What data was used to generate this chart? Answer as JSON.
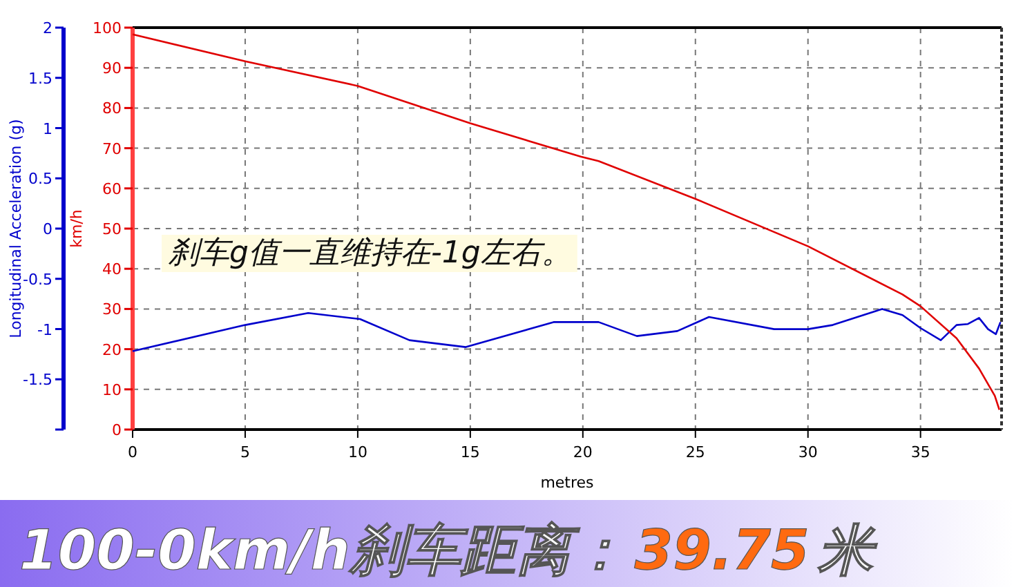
{
  "chart_data": {
    "type": "line",
    "xlabel": "metres",
    "ylabel": "Longitudinal Acceleration (g)",
    "y2label": "km/h",
    "xlim": [
      0,
      38.6
    ],
    "xticks": [
      0,
      5,
      10,
      15,
      20,
      25,
      30,
      35
    ],
    "ylim": [
      -2,
      2
    ],
    "yticks": [
      {
        "value": -2,
        "label": null
      },
      -1.5,
      -1,
      -0.5,
      0,
      0.5,
      1,
      1.5,
      2
    ],
    "y2lim": [
      0,
      100
    ],
    "y2ticks": [
      0,
      10,
      20,
      30,
      40,
      50,
      60,
      70,
      80,
      90,
      100
    ],
    "grid": true,
    "series": [
      {
        "color": "#0000cc",
        "x": [
          0,
          5,
          7.8,
          10.1,
          12.3,
          14.8,
          18.7,
          20.7,
          22.4,
          24.2,
          25.6,
          28.5,
          30,
          31.1,
          33.3,
          34.2,
          35,
          35.9,
          36.6,
          37.1,
          37.6,
          38,
          38.35,
          38.55
        ],
        "values": [
          -1.22,
          -0.96,
          -0.84,
          -0.9,
          -1.11,
          -1.18,
          -0.93,
          -0.93,
          -1.07,
          -1.02,
          -0.88,
          -1,
          -1,
          -0.96,
          -0.8,
          -0.86,
          -0.99,
          -1.11,
          -0.96,
          -0.95,
          -0.89,
          -1,
          -1.05,
          -0.93
        ]
      },
      {
        "color": "#e00000",
        "axis": "y2",
        "x": [
          0,
          5,
          10,
          15,
          19.9,
          20.7,
          25,
          30,
          34.2,
          35,
          36.6,
          37.6,
          38.3,
          38.5
        ],
        "values": [
          98.3,
          91.6,
          85.5,
          76.2,
          67.9,
          66.8,
          57.4,
          45.6,
          33.6,
          30.7,
          22.7,
          15.2,
          8.4,
          4.9
        ]
      }
    ],
    "annotations": [
      "刹车g值一直维持在-1g左右。",
      "100-0km/h刹车距离：",
      "39.75",
      "米"
    ]
  }
}
